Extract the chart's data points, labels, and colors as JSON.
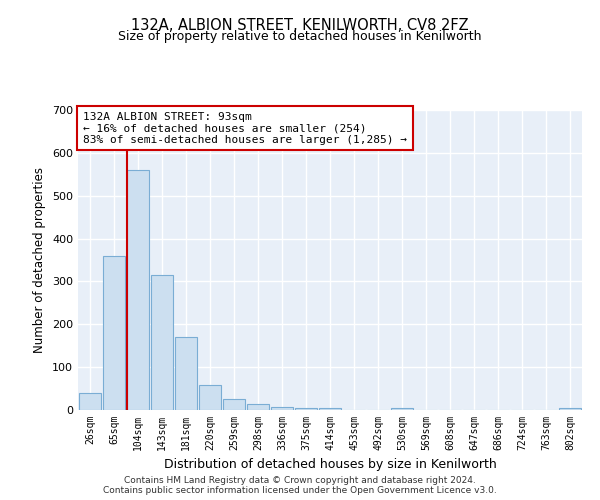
{
  "title1": "132A, ALBION STREET, KENILWORTH, CV8 2FZ",
  "title2": "Size of property relative to detached houses in Kenilworth",
  "xlabel": "Distribution of detached houses by size in Kenilworth",
  "ylabel": "Number of detached properties",
  "categories": [
    "26sqm",
    "65sqm",
    "104sqm",
    "143sqm",
    "181sqm",
    "220sqm",
    "259sqm",
    "298sqm",
    "336sqm",
    "375sqm",
    "414sqm",
    "453sqm",
    "492sqm",
    "530sqm",
    "569sqm",
    "608sqm",
    "647sqm",
    "686sqm",
    "724sqm",
    "763sqm",
    "802sqm"
  ],
  "values": [
    40,
    360,
    560,
    315,
    170,
    58,
    25,
    13,
    8,
    5,
    5,
    0,
    0,
    5,
    0,
    0,
    0,
    0,
    0,
    0,
    5
  ],
  "bar_color": "#ccdff0",
  "bar_edge_color": "#7aadd4",
  "vline_x_index": 2,
  "vline_color": "#cc0000",
  "annotation_text": "132A ALBION STREET: 93sqm\n← 16% of detached houses are smaller (254)\n83% of semi-detached houses are larger (1,285) →",
  "annotation_box_color": "#ffffff",
  "annotation_border_color": "#cc0000",
  "ylim": [
    0,
    700
  ],
  "yticks": [
    0,
    100,
    200,
    300,
    400,
    500,
    600,
    700
  ],
  "fig_background_color": "#ffffff",
  "plot_background_color": "#e8eff8",
  "grid_color": "#ffffff",
  "footer1": "Contains HM Land Registry data © Crown copyright and database right 2024.",
  "footer2": "Contains public sector information licensed under the Open Government Licence v3.0."
}
